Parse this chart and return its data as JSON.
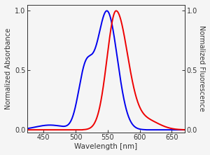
{
  "xlabel": "Wavelength [nm]",
  "ylabel_left": "Normalized Absorbance",
  "ylabel_right": "Normalized Fluorescence",
  "xlim": [
    425,
    670
  ],
  "ylim": [
    -0.02,
    1.05
  ],
  "xticks": [
    450,
    500,
    550,
    600,
    650
  ],
  "yticks_left": [
    0.0,
    0.5,
    1.0
  ],
  "yticks_right": [
    0.0,
    0.5,
    1.0
  ],
  "excitation_color": "#0000ee",
  "emission_color": "#ee0000",
  "background_color": "#f5f5f5",
  "line_width": 1.4,
  "figsize": [
    3.0,
    2.21
  ],
  "dpi": 100
}
